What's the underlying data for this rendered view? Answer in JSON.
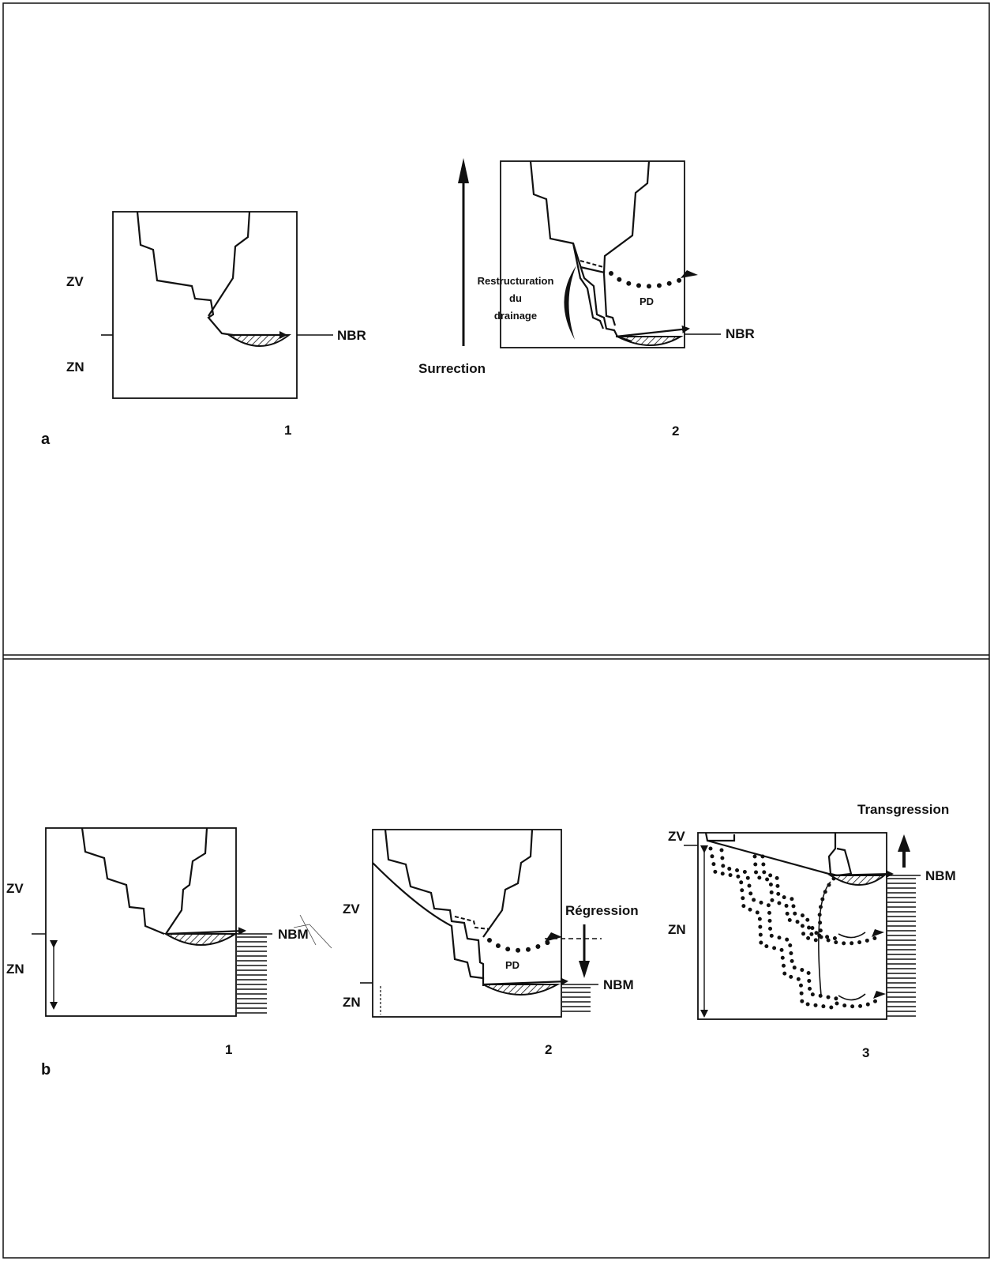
{
  "panel_a": {
    "letter": "a",
    "diagram_1": {
      "number": "1",
      "zv": "ZV",
      "zn": "ZN",
      "level": "NBR"
    },
    "diagram_2": {
      "number": "2",
      "level": "NBR",
      "pd": "PD",
      "restructuring": [
        "Restructuration",
        "du",
        "drainage"
      ],
      "uplift": "Surrection"
    }
  },
  "panel_b": {
    "letter": "b",
    "diagram_1": {
      "number": "1",
      "zv": "ZV",
      "zn": "ZN",
      "level": "NBM"
    },
    "diagram_2": {
      "number": "2",
      "zv": "ZV",
      "zn": "ZN",
      "level": "NBM",
      "pd": "PD",
      "regression": "Régression"
    },
    "diagram_3": {
      "number": "3",
      "zv": "ZV",
      "zn": "ZN",
      "level": "NBM",
      "transgression": "Transgression"
    }
  }
}
